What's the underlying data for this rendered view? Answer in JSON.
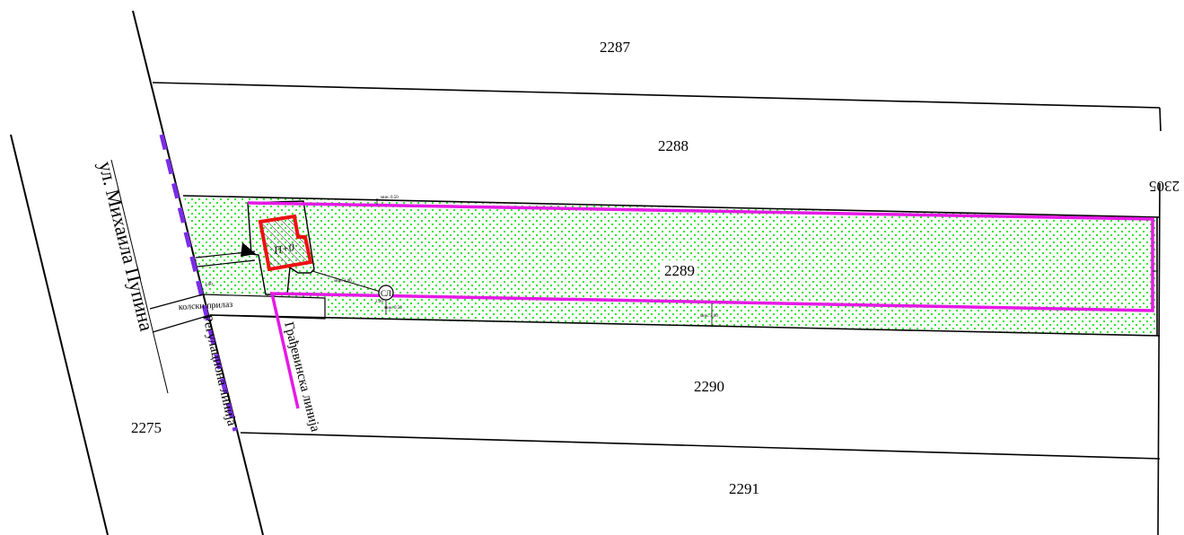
{
  "map": {
    "parcels": {
      "p2287": "2287",
      "p2288": "2288",
      "p2289": "2289",
      "p2290": "2290",
      "p2291": "2291",
      "p2275": "2275",
      "p2305_partial": "2305"
    },
    "street_name": "ул. Михаила Пупина",
    "regulation_line_label": "Регулациона линија",
    "building_line_label": "Грађевинска линија",
    "driveway_label": "колски прилаз",
    "building_label": "П+0",
    "meter_symbol": "СЛ",
    "dimension_labels": {
      "d1": "мин. 0.50",
      "d2": "мин. 3.00",
      "d3": "мин. 3.00",
      "d4": "3.00",
      "d5": "мин. 0.50",
      "d6": "2.00"
    },
    "colors": {
      "regulation_line": "#7a2de6",
      "building_line": "#e619e6",
      "building_outline": "#ee1111",
      "green_area_dots": "#19e619"
    }
  }
}
